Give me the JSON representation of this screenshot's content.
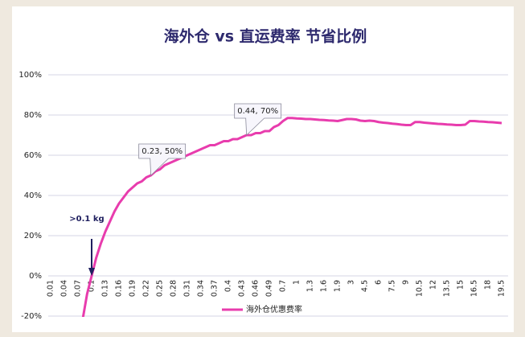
{
  "chart_data": {
    "type": "line",
    "title": "海外仓 vs 直运费率 节省比例",
    "categories": [
      "0.01",
      null,
      null,
      "0.04",
      null,
      null,
      "0.07",
      null,
      null,
      "0.1",
      null,
      null,
      "0.13",
      null,
      null,
      "0.16",
      null,
      null,
      "0.19",
      null,
      null,
      "0.22",
      null,
      null,
      "0.25",
      null,
      null,
      "0.28",
      null,
      null,
      "0.31",
      null,
      null,
      "0.34",
      null,
      null,
      "0.37",
      null,
      null,
      "0.4",
      null,
      null,
      "0.43",
      null,
      null,
      "0.46",
      null,
      null,
      "0.49",
      null,
      null,
      "0.7",
      null,
      null,
      "1",
      null,
      null,
      "1.3",
      null,
      null,
      "1.6",
      null,
      null,
      "1.9",
      null,
      null,
      "3",
      null,
      null,
      "4.5",
      null,
      null,
      "6",
      null,
      null,
      "7.5",
      null,
      null,
      "9",
      null,
      null,
      "10.5",
      null,
      null,
      "12",
      null,
      null,
      "13.5",
      null,
      null,
      "15",
      null,
      null,
      "16.5",
      null,
      null,
      "18",
      null,
      null,
      "19.5"
    ],
    "series": [
      {
        "name": "海外仓优惠费率",
        "color": "#e83cad",
        "values": [
          null,
          null,
          null,
          null,
          null,
          null,
          null,
          -22,
          -9,
          0,
          9,
          16,
          22,
          27,
          32,
          36,
          39,
          42,
          44,
          46,
          47,
          49,
          50,
          52,
          53,
          55,
          56,
          57,
          58,
          59,
          60,
          61,
          62,
          63,
          64,
          65,
          65,
          66,
          67,
          67,
          68,
          68,
          69,
          70,
          70,
          71,
          71,
          72,
          72,
          74,
          75,
          77,
          78.5,
          78.5,
          78.3,
          78.2,
          78,
          78,
          77.8,
          77.6,
          77.5,
          77.3,
          77.2,
          77,
          77.5,
          78,
          78,
          77.8,
          77.2,
          77,
          77.2,
          77,
          76.5,
          76.2,
          76,
          75.7,
          75.5,
          75.2,
          75,
          75,
          76.5,
          76.5,
          76.2,
          76,
          75.8,
          75.6,
          75.5,
          75.3,
          75.2,
          75,
          75,
          75.2,
          77,
          77,
          76.8,
          76.7,
          76.5,
          76.4,
          76.2,
          76
        ]
      }
    ],
    "ylim": [
      -20,
      100
    ],
    "yticks": [
      {
        "value": -20,
        "label": "-20%"
      },
      {
        "value": 0,
        "label": "0%"
      },
      {
        "value": 20,
        "label": "20%"
      },
      {
        "value": 40,
        "label": "40%"
      },
      {
        "value": 60,
        "label": "60%"
      },
      {
        "value": 80,
        "label": "80%"
      },
      {
        "value": 100,
        "label": "100%"
      }
    ],
    "grid": true,
    "legend": "bottom",
    "annotations": [
      "0.23, 50%",
      "0.44, 70%",
      ">0.1 kg"
    ]
  }
}
